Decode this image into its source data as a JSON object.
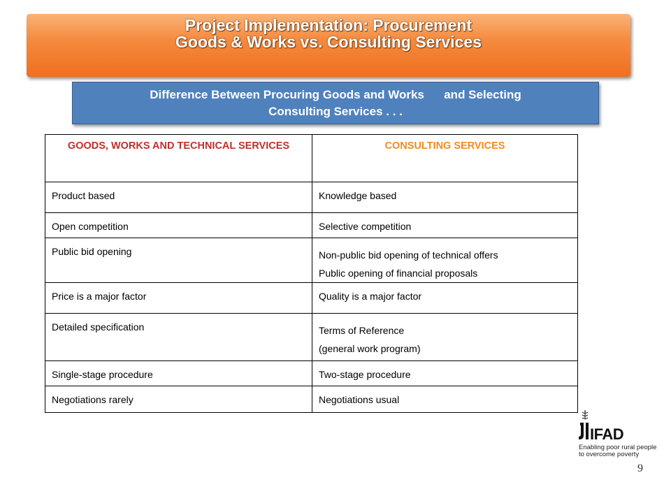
{
  "title": {
    "line1": "Project Implementation: Procurement",
    "line2": "Goods & Works vs. Consulting Services"
  },
  "subtitle": {
    "line1": "Difference Between Procuring Goods and Works      and Selecting",
    "line2": "Consulting Services . . ."
  },
  "table": {
    "headers": [
      "GOODS, WORKS AND TECHNICAL SERVICES",
      "CONSULTING SERVICES"
    ],
    "rows": [
      {
        "goods": [
          "Product based"
        ],
        "consulting": [
          "Knowledge based"
        ]
      },
      {
        "goods": [
          "Open competition"
        ],
        "consulting": [
          "Selective competition"
        ]
      },
      {
        "goods": [
          "Public bid opening"
        ],
        "consulting": [
          "Non-public bid opening of technical offers",
          "Public opening of financial proposals"
        ]
      },
      {
        "goods": [
          "Price is a major factor"
        ],
        "consulting": [
          "Quality is a major factor"
        ]
      },
      {
        "goods": [
          "Detailed specification"
        ],
        "consulting": [
          "Terms of Reference",
          "(general work program)"
        ]
      },
      {
        "goods": [
          "Single-stage procedure"
        ],
        "consulting": [
          "Two-stage procedure"
        ]
      },
      {
        "goods": [
          "Negotiations rarely"
        ],
        "consulting": [
          "Negotiations usual"
        ]
      }
    ]
  },
  "logo": {
    "name": "IFAD",
    "tagline_line1": "Enabling poor rural people",
    "tagline_line2": "to overcome poverty"
  },
  "page_number": "9"
}
